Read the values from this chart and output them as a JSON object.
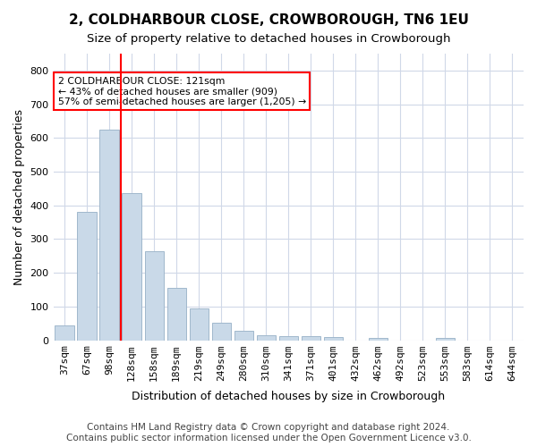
{
  "title": "2, COLDHARBOUR CLOSE, CROWBOROUGH, TN6 1EU",
  "subtitle": "Size of property relative to detached houses in Crowborough",
  "xlabel": "Distribution of detached houses by size in Crowborough",
  "ylabel": "Number of detached properties",
  "categories": [
    "37sqm",
    "67sqm",
    "98sqm",
    "128sqm",
    "158sqm",
    "189sqm",
    "219sqm",
    "249sqm",
    "280sqm",
    "310sqm",
    "341sqm",
    "371sqm",
    "401sqm",
    "432sqm",
    "462sqm",
    "492sqm",
    "523sqm",
    "553sqm",
    "583sqm",
    "614sqm",
    "644sqm"
  ],
  "values": [
    45,
    380,
    625,
    435,
    265,
    155,
    95,
    52,
    28,
    15,
    12,
    12,
    10,
    0,
    8,
    0,
    0,
    7,
    0,
    0,
    0
  ],
  "bar_color": "#c9d9e8",
  "bar_edge_color": "#a0b8cc",
  "red_line_index": 2.5,
  "annotation_text": "2 COLDHARBOUR CLOSE: 121sqm\n← 43% of detached houses are smaller (909)\n57% of semi-detached houses are larger (1,205) →",
  "annotation_box_color": "white",
  "annotation_box_edge": "red",
  "ylim": [
    0,
    850
  ],
  "yticks": [
    0,
    100,
    200,
    300,
    400,
    500,
    600,
    700,
    800
  ],
  "footer": "Contains HM Land Registry data © Crown copyright and database right 2024.\nContains public sector information licensed under the Open Government Licence v3.0.",
  "bg_color": "white",
  "grid_color": "#d0d8e8",
  "title_fontsize": 11,
  "subtitle_fontsize": 9.5,
  "axis_label_fontsize": 9,
  "tick_fontsize": 8,
  "footer_fontsize": 7.5
}
